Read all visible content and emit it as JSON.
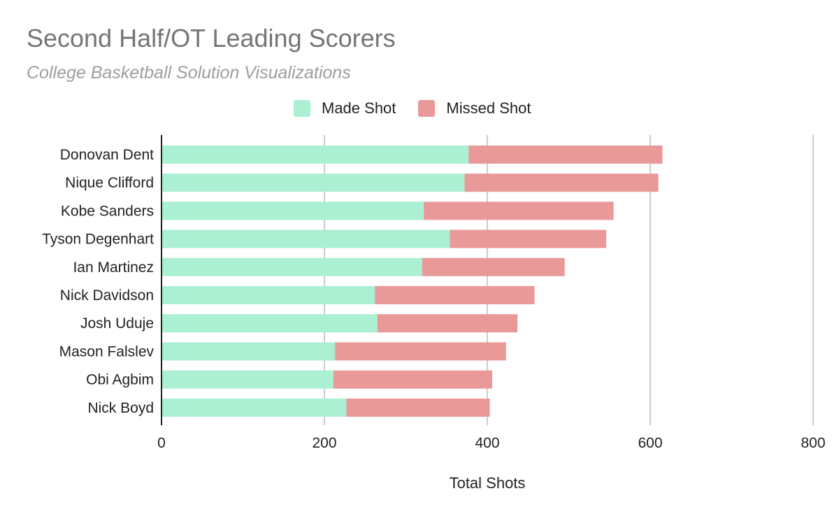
{
  "chart_data": {
    "type": "bar",
    "orientation": "horizontal",
    "stacked": true,
    "title": "Second Half/OT Leading Scorers",
    "subtitle": "College Basketball Solution Visualizations",
    "xlabel": "Total Shots",
    "ylabel": "",
    "xlim": [
      0,
      800
    ],
    "xticks": [
      "0",
      "200",
      "400",
      "600",
      "800"
    ],
    "grid": true,
    "legend_position": "top",
    "categories": [
      "Donovan Dent",
      "Nique Clifford",
      "Kobe Sanders",
      "Tyson Degenhart",
      "Ian Martinez",
      "Nick Davidson",
      "Josh Uduje",
      "Mason Falslev",
      "Obi Agbim",
      "Nick Boyd"
    ],
    "series": [
      {
        "name": "Made Shot",
        "color": "#abf0d3",
        "values": [
          377,
          372,
          322,
          354,
          320,
          262,
          265,
          213,
          211,
          227
        ]
      },
      {
        "name": "Missed Shot",
        "color": "#ea9999",
        "values": [
          238,
          238,
          233,
          192,
          175,
          196,
          172,
          210,
          195,
          176
        ]
      }
    ]
  }
}
